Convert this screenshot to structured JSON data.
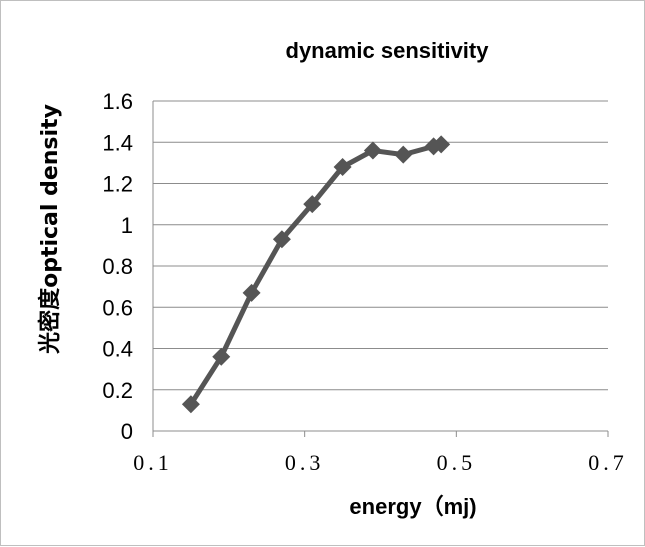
{
  "chart_data": {
    "type": "line",
    "title": "dynamic sensitivity",
    "xlabel": "energy（mj)",
    "ylabel": "光密度optical density",
    "xlim": [
      0.1,
      0.7
    ],
    "ylim": [
      0,
      1.6
    ],
    "x_ticks": [
      "0.1",
      "0.3",
      "0.5",
      "0.7"
    ],
    "x_tick_values": [
      0.1,
      0.3,
      0.5,
      0.7
    ],
    "y_ticks": [
      "0",
      "0.2",
      "0.4",
      "0.6",
      "0.8",
      "1",
      "1.2",
      "1.4",
      "1.6"
    ],
    "y_tick_values": [
      0,
      0.2,
      0.4,
      0.6,
      0.8,
      1.0,
      1.2,
      1.4,
      1.6
    ],
    "grid": "horizontal",
    "legend": "none",
    "series": [
      {
        "color": "#555555",
        "marker": "diamond",
        "x": [
          0.15,
          0.19,
          0.23,
          0.27,
          0.31,
          0.35,
          0.39,
          0.43,
          0.47,
          0.48
        ],
        "y": [
          0.13,
          0.36,
          0.67,
          0.93,
          1.1,
          1.28,
          1.36,
          1.34,
          1.38,
          1.39
        ]
      }
    ]
  }
}
